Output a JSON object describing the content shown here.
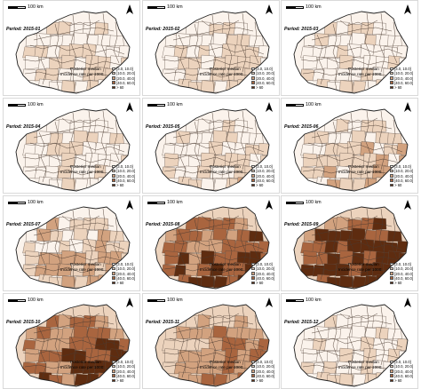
{
  "scale_label": "100 km",
  "north_arrow_icon": "north-arrow-icon",
  "legend": {
    "title_line1": "Posterior median",
    "title_line2": "Incidence rate per 1000:",
    "items": [
      {
        "label": "[3.0, 10.0]",
        "color": "#fbf3ec"
      },
      {
        "label": "[10.0, 20.0]",
        "color": "#ecd3bd"
      },
      {
        "label": "[20.0, 40.0]",
        "color": "#d2a27f"
      },
      {
        "label": "[40.0, 60.0]",
        "color": "#a9653f"
      },
      {
        "label": "> 60",
        "color": "#5e2c10"
      }
    ]
  },
  "panels": [
    {
      "period": "Period: 2015-01",
      "intensity": 0.28
    },
    {
      "period": "Period: 2015-02",
      "intensity": 0.3
    },
    {
      "period": "Period: 2015-03",
      "intensity": 0.24
    },
    {
      "period": "Period: 2015-04",
      "intensity": 0.22
    },
    {
      "period": "Period: 2015-05",
      "intensity": 0.28
    },
    {
      "period": "Period: 2015-06",
      "intensity": 0.34
    },
    {
      "period": "Period: 2015-07",
      "intensity": 0.38
    },
    {
      "period": "Period: 2015-08",
      "intensity": 0.62
    },
    {
      "period": "Period: 2015-09",
      "intensity": 0.72
    },
    {
      "period": "Period: 2015-10",
      "intensity": 0.6
    },
    {
      "period": "Period: 2015-11",
      "intensity": 0.48
    },
    {
      "period": "Period: 2015-12",
      "intensity": 0.26
    }
  ]
}
